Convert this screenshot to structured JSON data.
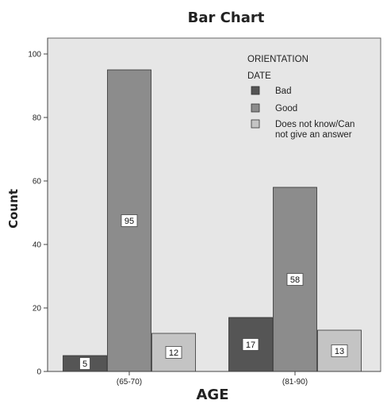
{
  "chart_data": {
    "type": "bar",
    "title": "Bar Chart",
    "xlabel": "AGE",
    "ylabel": "Count",
    "categories": [
      "(65-70)",
      "(81-90)"
    ],
    "ylim": [
      0,
      105
    ],
    "yticks": [
      0,
      20,
      40,
      60,
      80,
      100
    ],
    "legend_title": [
      "ORIENTATION",
      "DATE"
    ],
    "legend_position": "top-right",
    "grid": false,
    "series": [
      {
        "name": "Bad",
        "values": [
          5,
          17
        ],
        "color": "#555555"
      },
      {
        "name": "Good",
        "values": [
          95,
          58
        ],
        "color": "#8c8c8c"
      },
      {
        "name": "Does not know/Can not give an answer",
        "values": [
          12,
          13
        ],
        "color": "#c4c4c4"
      }
    ],
    "legend_labels": [
      [
        "Bad"
      ],
      [
        "Good"
      ],
      [
        "Does not know/Can",
        "not give an answer"
      ]
    ],
    "plot_background": "#e6e6e6"
  }
}
